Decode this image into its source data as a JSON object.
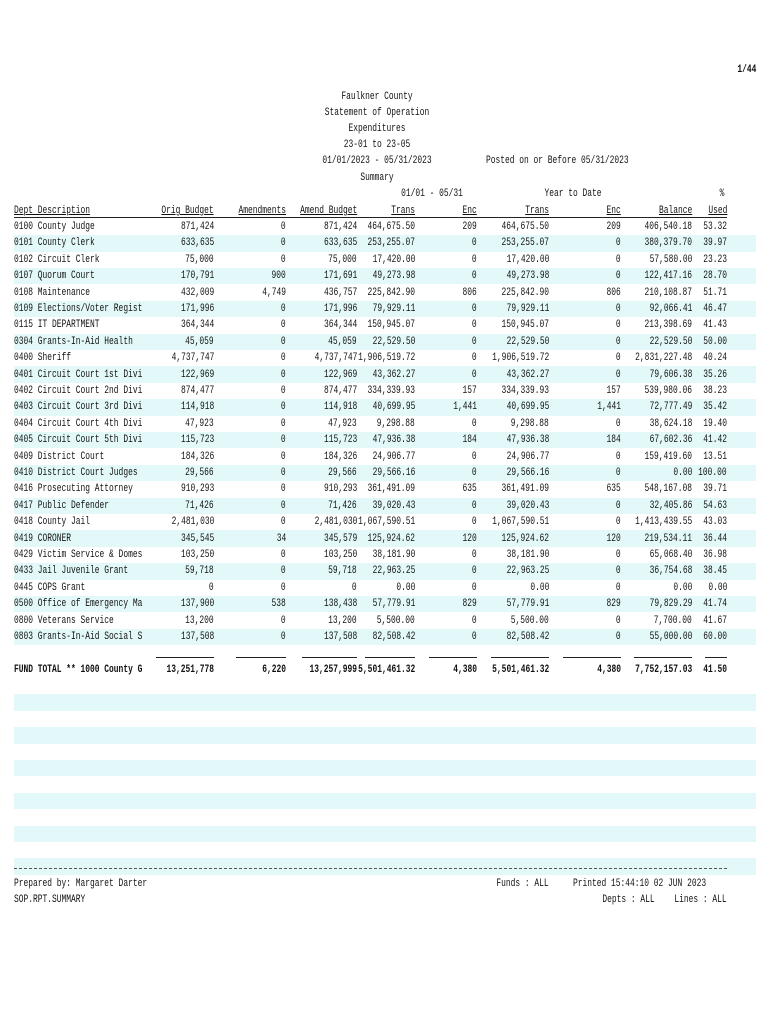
{
  "header": {
    "page": "1/44",
    "lines": [
      "Faulkner County",
      "Statement of Operation",
      "Expenditures",
      "23-01 to 23-05",
      "01/01/2023 - 05/31/2023",
      "Summary"
    ],
    "posted": "Posted on or Before 05/31/2023"
  },
  "table": {
    "group_headers": {
      "period": "01/01 - 05/31",
      "ytd": "Year to Date",
      "pct": "%"
    },
    "columns": [
      "Dept Description",
      "Orig Budget",
      "Amendments",
      "Amend Budget",
      "Trans",
      "Enc",
      "Trans",
      "Enc",
      "Balance",
      "Used"
    ],
    "rows": [
      [
        "0100 County Judge",
        "871,424",
        "0",
        "871,424",
        "464,675.50",
        "209",
        "464,675.50",
        "209",
        "406,540.18",
        "53.32"
      ],
      [
        "0101 County Clerk",
        "633,635",
        "0",
        "633,635",
        "253,255.07",
        "0",
        "253,255.07",
        "0",
        "380,379.70",
        "39.97"
      ],
      [
        "0102 Circuit Clerk",
        "75,000",
        "0",
        "75,000",
        "17,420.00",
        "0",
        "17,420.00",
        "0",
        "57,580.00",
        "23.23"
      ],
      [
        "0107 Quorum Court",
        "170,791",
        "900",
        "171,691",
        "49,273.98",
        "0",
        "49,273.98",
        "0",
        "122,417.16",
        "28.70"
      ],
      [
        "0108 Maintenance",
        "432,009",
        "4,749",
        "436,757",
        "225,842.90",
        "806",
        "225,842.90",
        "806",
        "210,108.87",
        "51.71"
      ],
      [
        "0109 Elections/Voter Regist",
        "171,996",
        "0",
        "171,996",
        "79,929.11",
        "0",
        "79,929.11",
        "0",
        "92,066.41",
        "46.47"
      ],
      [
        "0115 IT DEPARTMENT",
        "364,344",
        "0",
        "364,344",
        "150,945.07",
        "0",
        "150,945.07",
        "0",
        "213,398.69",
        "41.43"
      ],
      [
        "0304 Grants-In-Aid Health",
        "45,059",
        "0",
        "45,059",
        "22,529.50",
        "0",
        "22,529.50",
        "0",
        "22,529.50",
        "50.00"
      ],
      [
        "0400 Sheriff",
        "4,737,747",
        "0",
        "4,737,747",
        "1,906,519.72",
        "0",
        "1,906,519.72",
        "0",
        "2,831,227.48",
        "40.24"
      ],
      [
        "0401 Circuit Court 1st Divi",
        "122,969",
        "0",
        "122,969",
        "43,362.27",
        "0",
        "43,362.27",
        "0",
        "79,606.38",
        "35.26"
      ],
      [
        "0402 Circuit Court 2nd Divi",
        "874,477",
        "0",
        "874,477",
        "334,339.93",
        "157",
        "334,339.93",
        "157",
        "539,980.06",
        "38.23"
      ],
      [
        "0403 Circuit Court 3rd Divi",
        "114,918",
        "0",
        "114,918",
        "40,699.95",
        "1,441",
        "40,699.95",
        "1,441",
        "72,777.49",
        "35.42"
      ],
      [
        "0404 Circuit Court 4th Divi",
        "47,923",
        "0",
        "47,923",
        "9,298.88",
        "0",
        "9,298.88",
        "0",
        "38,624.18",
        "19.40"
      ],
      [
        "0405 Circuit Court 5th Divi",
        "115,723",
        "0",
        "115,723",
        "47,936.38",
        "184",
        "47,936.38",
        "184",
        "67,602.36",
        "41.42"
      ],
      [
        "0409 District Court",
        "184,326",
        "0",
        "184,326",
        "24,906.77",
        "0",
        "24,906.77",
        "0",
        "159,419.60",
        "13.51"
      ],
      [
        "0410 District Court Judges",
        "29,566",
        "0",
        "29,566",
        "29,566.16",
        "0",
        "29,566.16",
        "0",
        "0.00",
        "100.00"
      ],
      [
        "0416 Prosecuting Attorney",
        "910,293",
        "0",
        "910,293",
        "361,491.09",
        "635",
        "361,491.09",
        "635",
        "548,167.08",
        "39.71"
      ],
      [
        "0417 Public Defender",
        "71,426",
        "0",
        "71,426",
        "39,020.43",
        "0",
        "39,020.43",
        "0",
        "32,405.86",
        "54.63"
      ],
      [
        "0418 County Jail",
        "2,481,030",
        "0",
        "2,481,030",
        "1,067,590.51",
        "0",
        "1,067,590.51",
        "0",
        "1,413,439.55",
        "43.03"
      ],
      [
        "0419 CORONER",
        "345,545",
        "34",
        "345,579",
        "125,924.62",
        "120",
        "125,924.62",
        "120",
        "219,534.11",
        "36.44"
      ],
      [
        "0429 Victim Service & Domes",
        "103,250",
        "0",
        "103,250",
        "38,181.90",
        "0",
        "38,181.90",
        "0",
        "65,068.40",
        "36.98"
      ],
      [
        "0433 Jail Juvenile Grant",
        "59,718",
        "0",
        "59,718",
        "22,963.25",
        "0",
        "22,963.25",
        "0",
        "36,754.68",
        "38.45"
      ],
      [
        "0445 COPS Grant",
        "0",
        "0",
        "0",
        "0.00",
        "0",
        "0.00",
        "0",
        "0.00",
        "0.00"
      ],
      [
        "0500 Office of Emergency Ma",
        "137,900",
        "538",
        "138,438",
        "57,779.91",
        "829",
        "57,779.91",
        "829",
        "79,829.29",
        "41.74"
      ],
      [
        "0800 Veterans Service",
        "13,200",
        "0",
        "13,200",
        "5,500.00",
        "0",
        "5,500.00",
        "0",
        "7,700.00",
        "41.67"
      ],
      [
        "0803 Grants-In-Aid Social S",
        "137,508",
        "0",
        "137,508",
        "82,508.42",
        "0",
        "82,508.42",
        "0",
        "55,000.00",
        "60.00"
      ]
    ],
    "total": [
      "FUND TOTAL ** 1000 County G",
      "13,251,778",
      "6,220",
      "13,257,999",
      "5,501,461.32",
      "4,380",
      "5,501,461.32",
      "4,380",
      "7,752,157.03",
      "41.50"
    ]
  },
  "footer": {
    "prepared_by": "Prepared by: Margaret Darter",
    "report_id": "SOP.RPT.SUMMARY",
    "funds": "Funds : ALL",
    "printed": "Printed  15:44:10  02 JUN 2023",
    "depts": "Depts : ALL",
    "lines": "Lines : ALL"
  }
}
